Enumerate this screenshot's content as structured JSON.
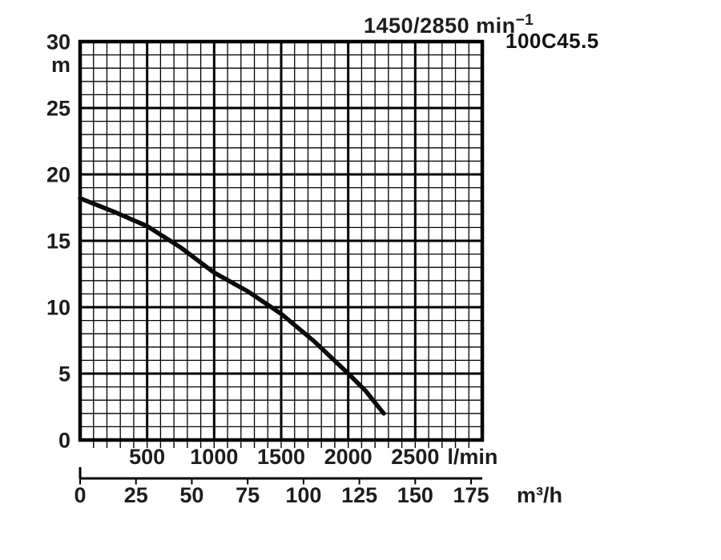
{
  "header": {
    "speed_main": "1450/2850 min",
    "speed_sup": "−1",
    "model": "100C45.5"
  },
  "chart_data": {
    "type": "line",
    "title": "1450/2850 min⁻¹",
    "model_label": "100C45.5",
    "grid": true,
    "x_axis_lmin": {
      "unit": "l/min",
      "min": 0,
      "max": 3000,
      "major_tick_labels": [
        500,
        1000,
        1500,
        2000,
        2500
      ],
      "minor_step": 100
    },
    "x_axis_m3h": {
      "unit": "m³/h",
      "tick_labels": [
        0,
        25,
        50,
        75,
        100,
        125,
        150,
        175
      ]
    },
    "y_axis": {
      "unit": "m",
      "min": 0,
      "max": 30,
      "tick_labels": [
        30,
        25,
        20,
        15,
        10,
        5,
        0
      ],
      "major_step": 5,
      "minor_step": 1
    },
    "series": [
      {
        "name": "100C45.5 head-flow curve",
        "points_lmin_m": [
          [
            0,
            18.2
          ],
          [
            250,
            17.2
          ],
          [
            500,
            16.1
          ],
          [
            750,
            14.5
          ],
          [
            1000,
            12.6
          ],
          [
            1250,
            11.2
          ],
          [
            1500,
            9.5
          ],
          [
            1750,
            7.4
          ],
          [
            2000,
            5.0
          ],
          [
            2130,
            3.7
          ],
          [
            2265,
            2.0
          ]
        ]
      }
    ],
    "colors": {
      "grid": "#000000",
      "curve": "#0a0a0a",
      "text": "#1d1d1d",
      "background": "#ffffff"
    }
  }
}
